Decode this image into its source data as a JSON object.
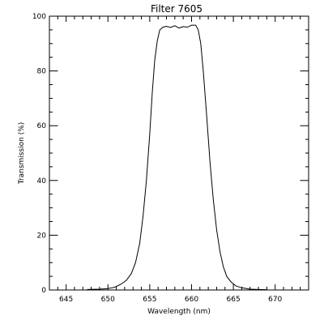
{
  "chart_data": {
    "type": "line",
    "title": "Filter 7605",
    "xlabel": "Wavelength (nm)",
    "ylabel": "Transmission (%)",
    "xlim": [
      643,
      674
    ],
    "ylim": [
      0,
      100
    ],
    "grid": false,
    "legend": "none",
    "x_major_ticks": [
      645,
      650,
      655,
      660,
      665,
      670
    ],
    "x_tick_labels": [
      "645",
      "650",
      "655",
      "660",
      "665",
      "670"
    ],
    "x_minor_step": 1,
    "y_major_ticks": [
      0,
      20,
      40,
      60,
      80,
      100
    ],
    "y_tick_labels": [
      "0",
      "20",
      "40",
      "60",
      "80",
      "100"
    ],
    "y_minor_step": 5,
    "series": [
      {
        "color": "#000000",
        "x": [
          647.5,
          649.0,
          650.0,
          650.8,
          651.5,
          652.2,
          652.8,
          653.3,
          653.8,
          654.2,
          654.6,
          655.0,
          655.3,
          655.6,
          655.9,
          656.2,
          656.6,
          657.0,
          657.5,
          658.0,
          658.5,
          659.0,
          659.5,
          660.0,
          660.5,
          660.8,
          661.1,
          661.4,
          661.8,
          662.2,
          662.6,
          663.0,
          663.4,
          663.8,
          664.2,
          664.7,
          665.3,
          666.0,
          667.0,
          668.0,
          669.0
        ],
        "y": [
          0.2,
          0.3,
          0.5,
          1.0,
          2.0,
          3.5,
          6.0,
          10.0,
          17.0,
          27.0,
          40.0,
          57.0,
          72.0,
          84.0,
          91.0,
          95.0,
          96.0,
          96.3,
          95.9,
          96.5,
          95.7,
          96.2,
          96.0,
          96.7,
          96.7,
          95.0,
          90.0,
          80.0,
          64.0,
          47.0,
          33.0,
          22.0,
          14.0,
          8.5,
          5.0,
          3.0,
          1.5,
          0.8,
          0.3,
          0.2,
          0.1
        ]
      }
    ]
  }
}
